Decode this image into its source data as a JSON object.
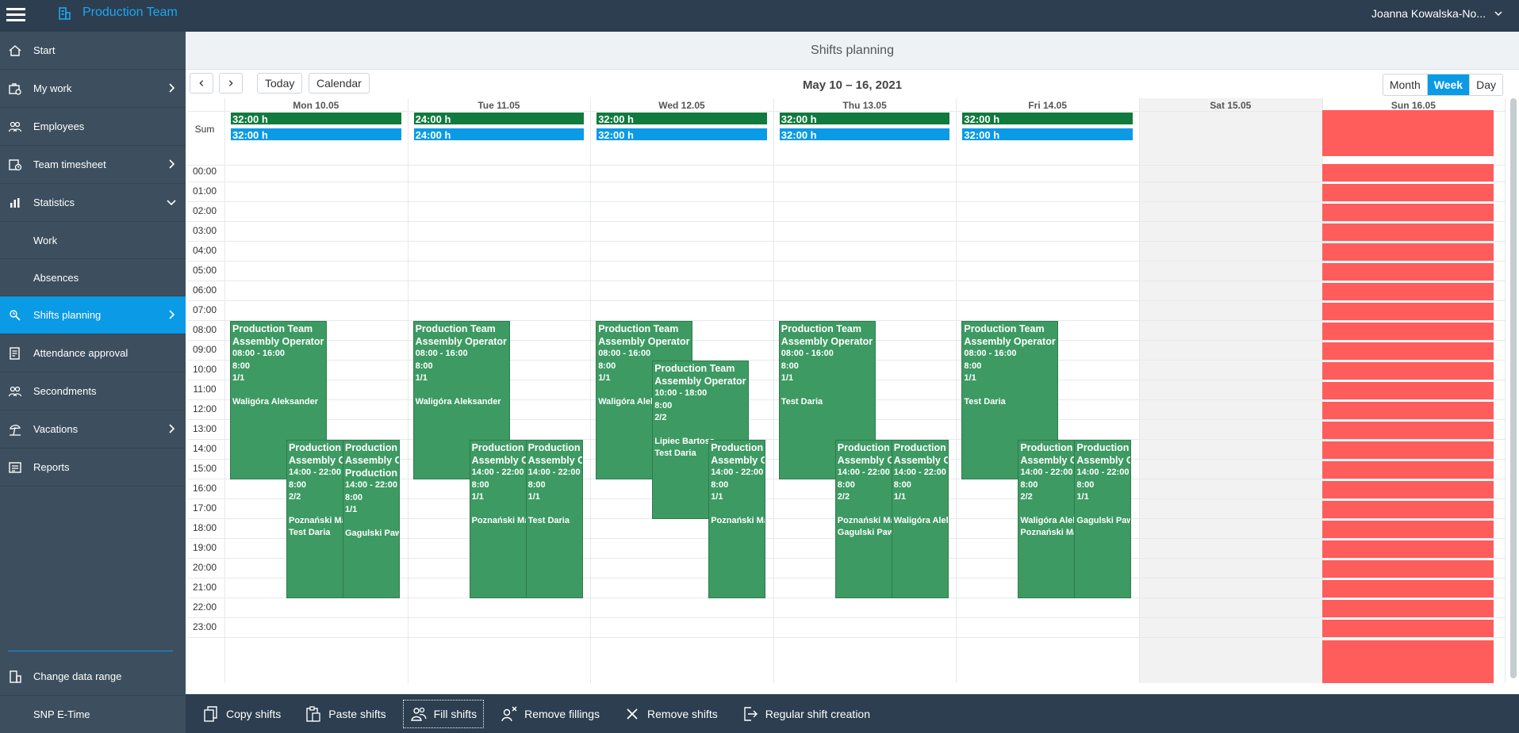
{
  "header": {
    "app_title": "Production Team",
    "user_name": "Joanna Kowalska-No..."
  },
  "sidebar": {
    "items": [
      {
        "label": "Start",
        "icon": "home-icon"
      },
      {
        "label": "My work",
        "icon": "briefcase-icon"
      },
      {
        "label": "Employees",
        "icon": "people-icon"
      },
      {
        "label": "Team timesheet",
        "icon": "timesheet-icon"
      },
      {
        "label": "Statistics",
        "icon": "bar-chart-icon"
      },
      {
        "label": "Work",
        "icon": ""
      },
      {
        "label": "Absences",
        "icon": ""
      },
      {
        "label": "Shifts planning",
        "icon": "shifts-icon"
      },
      {
        "label": "Attendance approval",
        "icon": "checklist-icon"
      },
      {
        "label": "Secondments",
        "icon": "people-icon"
      },
      {
        "label": "Vacations",
        "icon": "beach-icon"
      },
      {
        "label": "Reports",
        "icon": "report-icon"
      }
    ],
    "bottom": [
      {
        "label": "Change data range",
        "icon": "building-icon"
      },
      {
        "label": "SNP E-Time",
        "icon": ""
      }
    ]
  },
  "page": {
    "title": "Shifts planning"
  },
  "toolbar": {
    "today_label": "Today",
    "calendar_label": "Calendar",
    "date_range": "May 10 – 16, 2021",
    "views": [
      "Month",
      "Week",
      "Day"
    ],
    "active_view": "Week"
  },
  "calendar": {
    "days": [
      "Mon 10.05",
      "Tue 11.05",
      "Wed 12.05",
      "Thu 13.05",
      "Fri 14.05",
      "Sat 15.05",
      "Sun 16.05"
    ],
    "sum_label": "Sum",
    "hours": [
      "00:00",
      "01:00",
      "02:00",
      "03:00",
      "04:00",
      "05:00",
      "06:00",
      "07:00",
      "08:00",
      "09:00",
      "10:00",
      "11:00",
      "12:00",
      "13:00",
      "14:00",
      "15:00",
      "16:00",
      "17:00",
      "18:00",
      "19:00",
      "20:00",
      "21:00",
      "22:00",
      "23:00"
    ],
    "sums": [
      {
        "planned": "32:00 h",
        "filled": "32:00 h"
      },
      {
        "planned": "24:00 h",
        "filled": "24:00 h"
      },
      {
        "planned": "32:00 h",
        "filled": "32:00 h"
      },
      {
        "planned": "32:00 h",
        "filled": "32:00 h"
      },
      {
        "planned": "32:00 h",
        "filled": "32:00 h"
      }
    ],
    "colors": {
      "planned": "#117a3e",
      "filled": "#0a9ae6",
      "shift": "#3d9a62",
      "holiday": "#ff5c5c"
    },
    "shifts": [
      {
        "day": 0,
        "start": 8,
        "end": 16,
        "lane": 0,
        "team": "Production Team",
        "role": "Assembly Operator",
        "time": "08:00 - 16:00",
        "duration": "8:00",
        "fill": "1/1",
        "employees": [
          "Waligóra Aleksander"
        ]
      },
      {
        "day": 0,
        "start": 14,
        "end": 22,
        "lane": 1,
        "team": "Production Team",
        "role": "Assembly Operator",
        "time": "14:00 - 22:00",
        "duration": "8:00",
        "fill": "2/2",
        "employees": [
          "Poznański Marek",
          "Test Daria"
        ]
      },
      {
        "day": 0,
        "start": 14,
        "end": 22,
        "lane": 2,
        "team": "Production Team",
        "role": "Assembly Operator",
        "team2": "Production Team",
        "time": "14:00 - 22:00",
        "duration": "8:00",
        "fill": "1/1",
        "employees": [
          "Gagulski Paweł"
        ]
      },
      {
        "day": 1,
        "start": 8,
        "end": 16,
        "lane": 0,
        "team": "Production Team",
        "role": "Assembly Operator",
        "time": "08:00 - 16:00",
        "duration": "8:00",
        "fill": "1/1",
        "employees": [
          "Waligóra Aleksander"
        ]
      },
      {
        "day": 1,
        "start": 14,
        "end": 22,
        "lane": 1,
        "team": "Production Team",
        "role": "Assembly Operator",
        "time": "14:00 - 22:00",
        "duration": "8:00",
        "fill": "1/1",
        "employees": [
          "Poznański Marek"
        ]
      },
      {
        "day": 1,
        "start": 14,
        "end": 22,
        "lane": 2,
        "team": "Production Team",
        "role": "Assembly Operator",
        "time": "14:00 - 22:00",
        "duration": "8:00",
        "fill": "1/1",
        "employees": [
          "Test Daria"
        ]
      },
      {
        "day": 2,
        "start": 8,
        "end": 16,
        "lane": 0,
        "team": "Production Team",
        "role": "Assembly Operator",
        "time": "08:00 - 16:00",
        "duration": "8:00",
        "fill": "1/1",
        "employees": [
          "Waligóra Aleksander"
        ]
      },
      {
        "day": 2,
        "start": 10,
        "end": 18,
        "lane": 1,
        "team": "Production Team",
        "role": "Assembly Operator",
        "time": "10:00 - 18:00",
        "duration": "8:00",
        "fill": "2/2",
        "employees": [
          "Lipiec Bartosz",
          "Test Daria"
        ]
      },
      {
        "day": 2,
        "start": 14,
        "end": 22,
        "lane": 2,
        "team": "Production Team",
        "role": "Assembly Operator",
        "time": "14:00 - 22:00",
        "duration": "8:00",
        "fill": "1/1",
        "employees": [
          "Poznański Marek"
        ]
      },
      {
        "day": 3,
        "start": 8,
        "end": 16,
        "lane": 0,
        "team": "Production Team",
        "role": "Assembly Operator",
        "time": "08:00 - 16:00",
        "duration": "8:00",
        "fill": "1/1",
        "employees": [
          "Test Daria"
        ]
      },
      {
        "day": 3,
        "start": 14,
        "end": 22,
        "lane": 1,
        "team": "Production Team",
        "role": "Assembly Operator",
        "time": "14:00 - 22:00",
        "duration": "8:00",
        "fill": "2/2",
        "employees": [
          "Poznański Marek",
          "Gagulski Paweł"
        ]
      },
      {
        "day": 3,
        "start": 14,
        "end": 22,
        "lane": 2,
        "team": "Production Team",
        "role": "Assembly Operator",
        "time": "14:00 - 22:00",
        "duration": "8:00",
        "fill": "1/1",
        "employees": [
          "Waligóra Aleksander"
        ]
      },
      {
        "day": 4,
        "start": 8,
        "end": 16,
        "lane": 0,
        "team": "Production Team",
        "role": "Assembly Operator",
        "time": "08:00 - 16:00",
        "duration": "8:00",
        "fill": "1/1",
        "employees": [
          "Test Daria"
        ]
      },
      {
        "day": 4,
        "start": 14,
        "end": 22,
        "lane": 1,
        "team": "Production Team",
        "role": "Assembly Operator",
        "time": "14:00 - 22:00",
        "duration": "8:00",
        "fill": "2/2",
        "employees": [
          "Waligóra Aleksander",
          "Poznański Marek"
        ]
      },
      {
        "day": 4,
        "start": 14,
        "end": 22,
        "lane": 2,
        "team": "Production Team",
        "role": "Assembly Operator",
        "time": "14:00 - 22:00",
        "duration": "8:00",
        "fill": "1/1",
        "employees": [
          "Gagulski Paweł"
        ]
      }
    ]
  },
  "actions": [
    {
      "label": "Copy shifts",
      "icon": "copy-icon"
    },
    {
      "label": "Paste shifts",
      "icon": "paste-icon"
    },
    {
      "label": "Fill shifts",
      "icon": "fill-people-icon"
    },
    {
      "label": "Remove fillings",
      "icon": "remove-person-icon"
    },
    {
      "label": "Remove shifts",
      "icon": "close-icon"
    },
    {
      "label": "Regular shift creation",
      "icon": "export-icon"
    }
  ]
}
